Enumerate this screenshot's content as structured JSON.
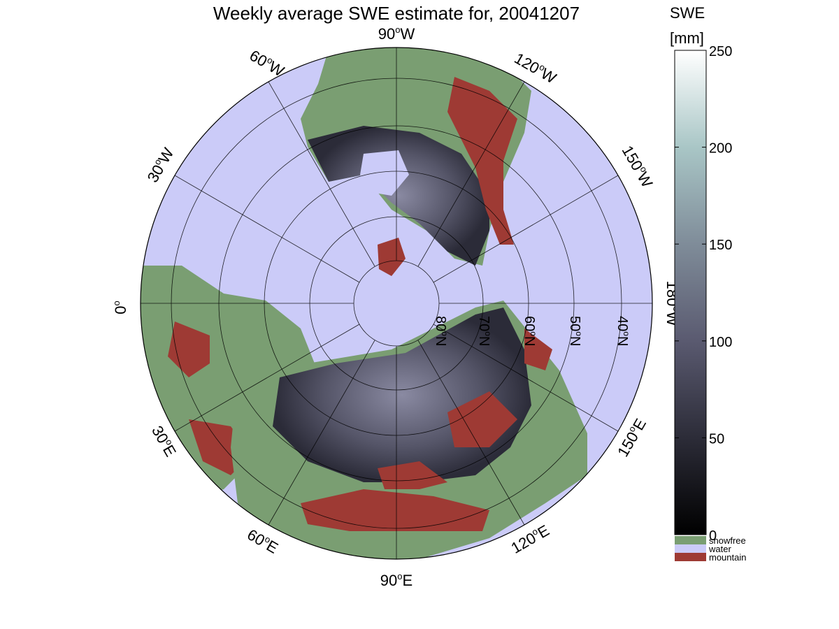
{
  "title": "Weekly average SWE estimate for, 20041207",
  "colorbar": {
    "label_line1": "SWE",
    "label_line2": "[mm]",
    "ticks": [
      "0",
      "50",
      "100",
      "150",
      "200",
      "250"
    ],
    "legend": [
      {
        "label": "snowfree",
        "color": "#7a9e72"
      },
      {
        "label": "water",
        "color": "#cbcbf8"
      },
      {
        "label": "mountain",
        "color": "#9e3a34"
      }
    ]
  },
  "longitude_labels": {
    "lon_0": "0",
    "lon_30e": "30",
    "lon_60e": "60",
    "lon_90e": "90",
    "lon_120e": "120",
    "lon_150e": "150",
    "lon_180w": "180",
    "lon_150w": "150",
    "lon_120w": "120",
    "lon_90w": "90",
    "lon_60w": "60",
    "lon_30w": "30",
    "degree_symbol": "o",
    "east_suffix": "E",
    "west_suffix": "W"
  },
  "latitude_labels": {
    "lat_80": "80",
    "lat_70": "70",
    "lat_60": "60",
    "lat_50": "50",
    "lat_40": "40",
    "north_suffix": "N"
  },
  "colors": {
    "water": "#cbcbf8",
    "snowfree": "#7a9e72",
    "mountain": "#9e3a34",
    "snow_dark": "#2b2b38",
    "snow_mid": "#555568",
    "snow_light": "#8a8aa2"
  }
}
